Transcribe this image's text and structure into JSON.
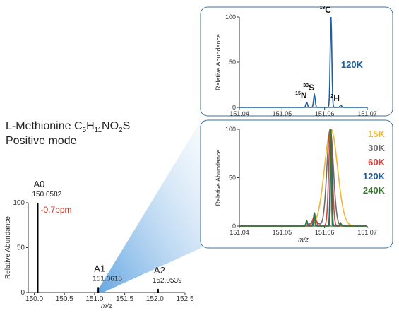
{
  "compound": {
    "name_prefix": "L-Methionine C",
    "formula_parts": [
      {
        "text": "5",
        "sub": true
      },
      {
        "text": "H",
        "sub": false
      },
      {
        "text": "11",
        "sub": true
      },
      {
        "text": "NO",
        "sub": false
      },
      {
        "text": "2",
        "sub": true
      },
      {
        "text": "S",
        "sub": false
      }
    ],
    "mode": "Positive mode"
  },
  "chart_data": [
    {
      "id": "overview",
      "type": "bar",
      "xlabel": "m/z",
      "ylabel": "Relative Abundance",
      "xlim": [
        149.9,
        152.5
      ],
      "ylim": [
        0,
        100
      ],
      "xticks": [
        "150.0",
        "150.5",
        "151.0",
        "151.5",
        "152.0",
        "152.5"
      ],
      "yticks": [
        "0",
        "50",
        "100"
      ],
      "peaks": [
        {
          "label": "A0",
          "mz": 150.0582,
          "mz_text": "150.0582",
          "value": 100
        },
        {
          "label": "A1",
          "mz": 151.0615,
          "mz_text": "151.0615",
          "value": 6
        },
        {
          "label": "A2",
          "mz": 152.0539,
          "mz_text": "152.0539",
          "value": 4
        }
      ],
      "annotation": "-0.7ppm",
      "annotation_color": "#c0392b"
    },
    {
      "id": "zoom_120k",
      "type": "line",
      "xlabel": "",
      "ylabel": "Relative Abundance",
      "xlim": [
        151.04,
        151.07
      ],
      "ylim": [
        0,
        100
      ],
      "xticks": [
        "151.04",
        "151.05",
        "151.06",
        "151.07"
      ],
      "yticks": [
        "0",
        "50",
        "100"
      ],
      "series": [
        {
          "name": "120K",
          "color": "#1f5f9e",
          "peaks": [
            [
              151.0558,
              5.5
            ],
            [
              151.0576,
              14
            ],
            [
              151.0615,
              100
            ],
            [
              151.0638,
              2.5
            ]
          ],
          "width": 0.00045
        }
      ],
      "peak_labels": [
        {
          "iso": "15",
          "el": "N",
          "mz": 151.0558,
          "y": 5.5
        },
        {
          "iso": "33",
          "el": "S",
          "mz": 151.0576,
          "y": 14
        },
        {
          "iso": "13",
          "el": "C",
          "mz": 151.0615,
          "y": 100
        },
        {
          "iso": "2",
          "el": "H",
          "mz": 151.0638,
          "y": 2.5
        }
      ]
    },
    {
      "id": "zoom_resolutions",
      "type": "line",
      "xlabel": "m/z",
      "ylabel": "Relative Abundance",
      "xlim": [
        151.04,
        151.07
      ],
      "ylim": [
        0,
        100
      ],
      "xticks": [
        "151.04",
        "151.05",
        "151.06",
        "151.07"
      ],
      "yticks": [
        "0",
        "50",
        "100"
      ],
      "series": [
        {
          "name": "15K",
          "color": "#f2b632",
          "peaks": [
            [
              151.0615,
              100
            ]
          ],
          "width": 0.0036
        },
        {
          "name": "30K",
          "color": "#6e6e6e",
          "peaks": [
            [
              151.0613,
              100
            ],
            [
              151.0576,
              6
            ]
          ],
          "width": 0.0018
        },
        {
          "name": "60K",
          "color": "#e0403a",
          "peaks": [
            [
              151.0614,
              100
            ],
            [
              151.0576,
              10
            ]
          ],
          "width": 0.001
        },
        {
          "name": "120K",
          "color": "#1f5f9e",
          "peaks": [
            [
              151.0558,
              5.5
            ],
            [
              151.0576,
              14
            ],
            [
              151.0615,
              100
            ],
            [
              151.0638,
              2.5
            ]
          ],
          "width": 0.00045
        },
        {
          "name": "240K",
          "color": "#3a7a2e",
          "peaks": [
            [
              151.0558,
              6
            ],
            [
              151.0576,
              14
            ],
            [
              151.0615,
              100
            ],
            [
              151.0638,
              3
            ]
          ],
          "width": 0.00025
        }
      ]
    }
  ]
}
